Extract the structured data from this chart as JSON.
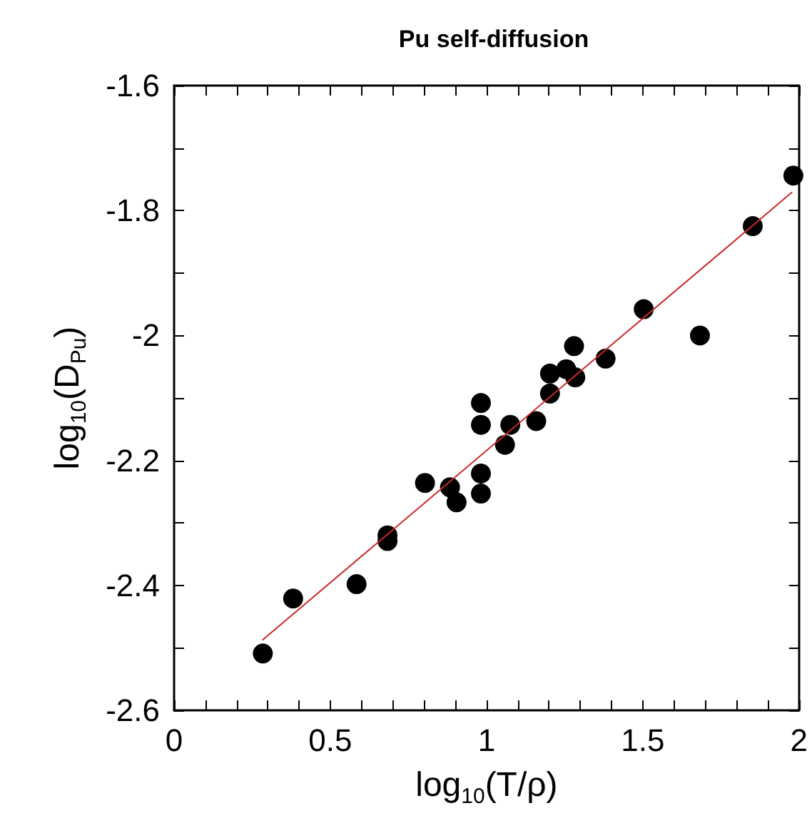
{
  "chart_data": {
    "type": "scatter",
    "title": "Pu self-diffusion",
    "xlabel": "log$_{10}$(T/ρ)",
    "ylabel": "log$_{10}$(D$_{Pu}$)",
    "series": [
      {
        "type": "scatter",
        "color": "#000000",
        "marker": "circle",
        "x": [
          0.284,
          0.381,
          0.584,
          0.683,
          0.683,
          0.803,
          0.883,
          0.904,
          0.982,
          0.982,
          0.982,
          0.982,
          1.059,
          1.076,
          1.159,
          1.203,
          1.203,
          1.255,
          1.284,
          1.28,
          1.381,
          1.503,
          1.683,
          1.852,
          1.982
        ],
        "values": [
          -2.509,
          -2.421,
          -2.398,
          -2.32,
          -2.329,
          -2.236,
          -2.243,
          -2.267,
          -2.221,
          -2.253,
          -2.108,
          -2.143,
          -2.175,
          -2.143,
          -2.137,
          -2.093,
          -2.061,
          -2.054,
          -2.067,
          -2.017,
          -2.037,
          -1.958,
          -2.0,
          -1.825,
          -1.744
        ]
      },
      {
        "type": "line",
        "color": "#cc2a2a",
        "marker": "none",
        "line_style": "solid",
        "x": [
          0.284,
          1.977
        ],
        "values": [
          -2.487,
          -1.771
        ]
      }
    ],
    "xlim": [
      0,
      2
    ],
    "xticks": [
      0,
      {
        "value": 0.1,
        "label": null
      },
      {
        "value": 0.2,
        "label": null
      },
      {
        "value": 0.3,
        "label": null
      },
      {
        "value": 0.4,
        "label": null
      },
      0.5,
      {
        "value": 0.6,
        "label": null
      },
      {
        "value": 0.7,
        "label": null
      },
      {
        "value": 0.8,
        "label": null
      },
      {
        "value": 0.9,
        "label": null
      },
      1,
      {
        "value": 1.1,
        "label": null
      },
      {
        "value": 1.2,
        "label": null
      },
      {
        "value": 1.3,
        "label": null
      },
      {
        "value": 1.4,
        "label": null
      },
      1.5,
      {
        "value": 1.6,
        "label": null
      },
      {
        "value": 1.7,
        "label": null
      },
      {
        "value": 1.8,
        "label": null
      },
      {
        "value": 1.9,
        "label": null
      },
      2
    ],
    "ylim": [
      -2.6,
      -1.6
    ],
    "yticks": [
      -2.6,
      {
        "value": -2.5,
        "label": null
      },
      -2.4,
      {
        "value": -2.3,
        "label": null
      },
      -2.2,
      {
        "value": -2.1,
        "label": null
      },
      -2,
      {
        "value": -1.9,
        "label": null
      },
      -1.8,
      {
        "value": -1.7,
        "label": null
      },
      -1.6
    ],
    "grid": false
  }
}
